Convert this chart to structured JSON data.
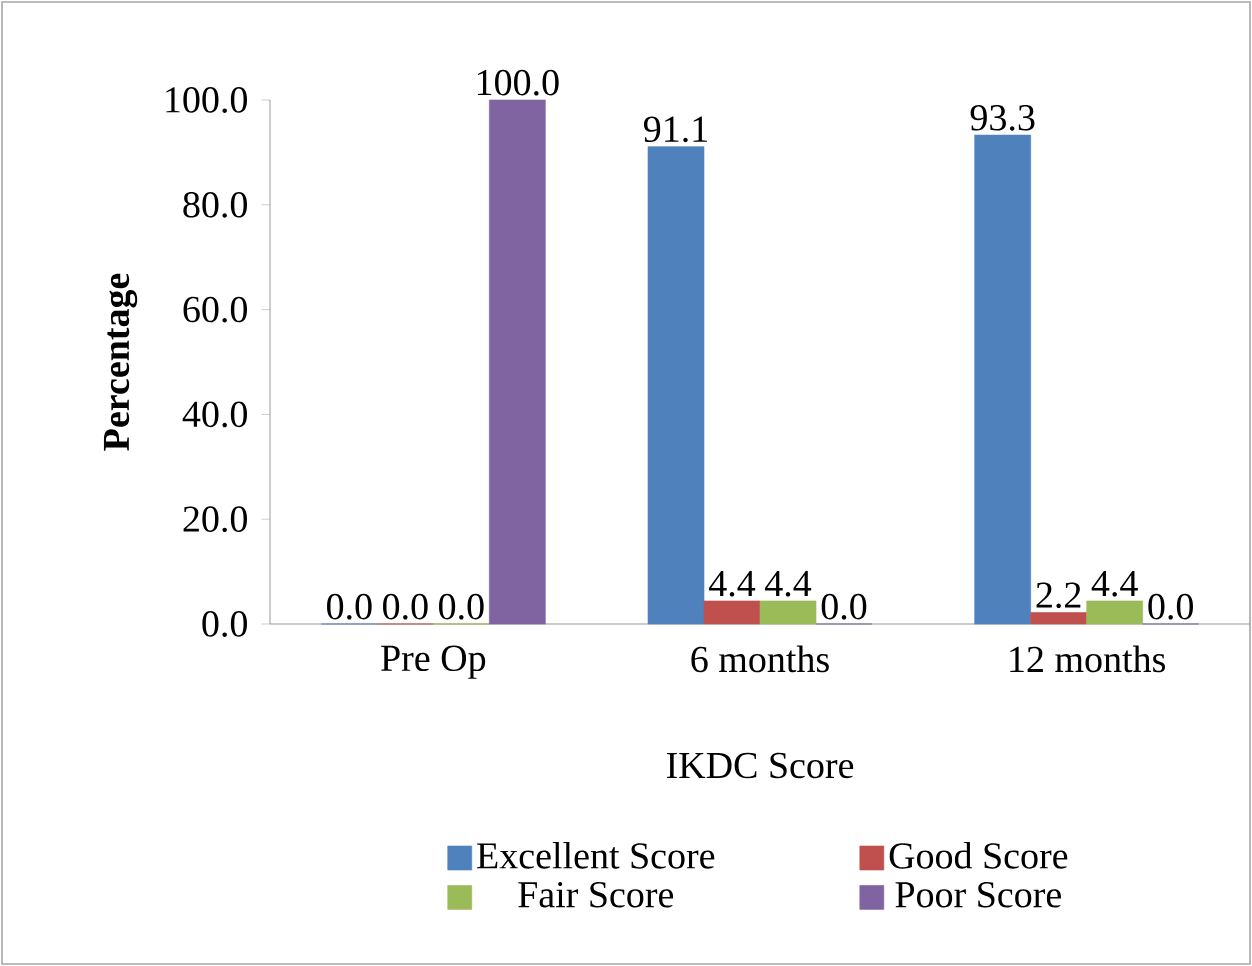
{
  "chart_data": {
    "type": "bar",
    "xlabel": "IKDC Score",
    "ylabel": "Percentage",
    "categories": [
      "Pre Op",
      "6 months",
      "12 months"
    ],
    "series": [
      {
        "name": "Excellent Score",
        "color": "#4f81bd",
        "values": [
          0,
          91.1,
          93.3
        ],
        "value_labels": [
          "0.0",
          "91.1",
          "93.3"
        ]
      },
      {
        "name": "Good Score",
        "color": "#c0504d",
        "values": [
          0,
          4.4,
          2.2
        ],
        "value_labels": [
          "0.0",
          "4.4",
          "2.2"
        ]
      },
      {
        "name": "Fair Score",
        "color": "#9bbb59",
        "values": [
          0,
          4.4,
          4.4
        ],
        "value_labels": [
          "0.0",
          "4.4",
          "4.4"
        ]
      },
      {
        "name": "Poor Score",
        "color": "#8064a2",
        "values": [
          100,
          0,
          0
        ],
        "value_labels": [
          "100.0",
          "0.0",
          "0.0"
        ]
      }
    ],
    "ylim": [
      0,
      100
    ],
    "yticks": [
      {
        "value": 0,
        "label": "0.0"
      },
      {
        "value": 20,
        "label": "20.0"
      },
      {
        "value": 40,
        "label": "40.0"
      },
      {
        "value": 60,
        "label": "60.0"
      },
      {
        "value": 80,
        "label": "80.0"
      },
      {
        "value": 100,
        "label": "100.0"
      }
    ],
    "grid": false,
    "legend": "bottom"
  }
}
